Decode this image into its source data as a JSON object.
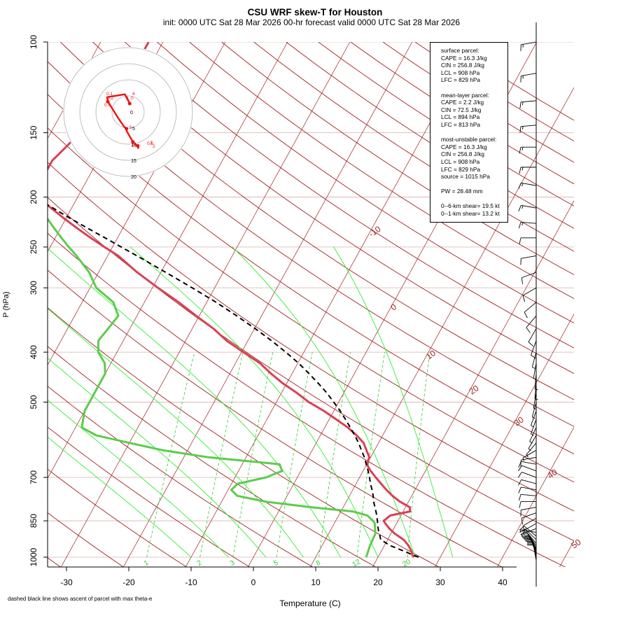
{
  "title": "CSU WRF skew-T for Houston",
  "subtitle": "init: 0000 UTC Sat 28 Mar 2026     00-hr forecast valid 0000 UTC Sat 28 Mar 2026",
  "footnote": "dashed black line shows ascent of parcel with max theta-e",
  "info": {
    "surface_header": "surface parcel:",
    "surface_cape": "CAPE = 16.3 J/kg",
    "surface_cin": "CIN = 256.8 J/kg",
    "surface_lcl": "LCL = 908 hPa",
    "surface_lfc": "LFC = 829 hPa",
    "ml_header": "mean-layer parcel:",
    "ml_cape": "CAPE = 2.2 J/kg",
    "ml_cin": "CIN = 72.5 J/kg",
    "ml_lcl": "LCL = 894 hPa",
    "ml_lfc": "LFC = 813 hPa",
    "mu_header": "most-unstable parcel:",
    "mu_cape": "CAPE = 16.3 J/kg",
    "mu_cin": "CIN = 256.8 J/kg",
    "mu_lcl": "LCL = 908 hPa",
    "mu_lfc": "LFC = 829 hPa",
    "mu_source": "source = 1015 hPa",
    "pw": "PW =  28.48 mm",
    "shear_06": "0--6-km shear= 19.5 kt",
    "shear_01": "0--1-km shear= 13.2 kt"
  },
  "colors": {
    "temperature": "#d94153",
    "dewpoint": "#5ccc4c",
    "parcel": "#000000",
    "isotherm": "#a02020",
    "dry_adiabat": "#a02020",
    "isobar": "#d8b0b0",
    "moist_adiabat": "#33ee33",
    "mixing_ratio": "#33cc33",
    "hodograph": "#ee1111"
  },
  "chart_data": {
    "type": "skew-T log-p diagram",
    "xlabel": "Temperature (C)",
    "ylabel": "P (hPa)",
    "xlim": [
      -33,
      45
    ],
    "ylim": [
      1000,
      100
    ],
    "x_ticks": [
      -30,
      -20,
      -10,
      0,
      10,
      20,
      30,
      40
    ],
    "y_ticks": [
      100,
      150,
      200,
      250,
      300,
      400,
      500,
      700,
      850,
      1000
    ],
    "y_scale": "log",
    "isotherm_labels": [
      "-10",
      "0",
      "10",
      "20",
      "30",
      "40",
      "50"
    ],
    "isotherm_label_values": [
      -10,
      0,
      10,
      20,
      30,
      40,
      50
    ],
    "mixing_ratio_labels": [
      "1",
      "2",
      "3",
      "5",
      "8",
      "12",
      "20"
    ],
    "mixing_ratio_values": [
      1,
      2,
      3,
      5,
      8,
      12,
      20
    ],
    "temperature_profile": {
      "pressure": [
        1000,
        990,
        975,
        950,
        925,
        900,
        880,
        860,
        850,
        830,
        815,
        800,
        780,
        760,
        740,
        720,
        700,
        680,
        660,
        640,
        620,
        600,
        580,
        560,
        540,
        520,
        500,
        480,
        460,
        440,
        420,
        400,
        380,
        360,
        340,
        320,
        300,
        280,
        260,
        250,
        240,
        230,
        220,
        210,
        200,
        190,
        180,
        170,
        160,
        150,
        140,
        130,
        120,
        110,
        100
      ],
      "temperature": [
        25.8,
        25.3,
        24.9,
        23.9,
        22.6,
        20.6,
        19.3,
        18.2,
        17.7,
        18.3,
        21.1,
        20.7,
        18.6,
        16.9,
        15.4,
        14.0,
        12.6,
        11.2,
        10.0,
        9.8,
        8.7,
        7.6,
        5.8,
        3.7,
        1.1,
        -1.6,
        -4.8,
        -7.5,
        -10.6,
        -13.4,
        -16.1,
        -19.7,
        -23.4,
        -26.6,
        -30.5,
        -34.5,
        -39.1,
        -43.8,
        -48.3,
        -51.3,
        -54.3,
        -57.3,
        -60.3,
        -63.3,
        -66.3,
        -67.3,
        -67.3,
        -67.3,
        -66.3,
        -65.3,
        -65.3,
        -63.3,
        -62.3,
        -62.3,
        -62.3
      ]
    },
    "dewpoint_profile": {
      "pressure": [
        1000,
        975,
        950,
        925,
        900,
        880,
        860,
        850,
        830,
        815,
        800,
        780,
        760,
        740,
        720,
        700,
        680,
        660,
        640,
        620,
        600,
        580,
        560,
        540,
        520,
        500,
        480,
        460,
        440,
        420,
        400,
        380,
        360,
        340,
        320,
        300,
        280,
        260,
        250,
        240,
        230,
        220,
        210,
        200,
        190,
        180,
        170
      ],
      "dewpoint": [
        18.1,
        17.9,
        17.7,
        17.6,
        17.5,
        17.0,
        16.5,
        16.0,
        14.6,
        11.9,
        5.0,
        -3.0,
        -8.0,
        -9.5,
        -9.0,
        -5.0,
        -3.0,
        -4.0,
        -16.0,
        -24.0,
        -30.0,
        -36.0,
        -39.0,
        -39.5,
        -40.0,
        -40.0,
        -40.0,
        -40.0,
        -40.0,
        -41.0,
        -43.0,
        -44.0,
        -43.5,
        -43.0,
        -45.0,
        -49.0,
        -51.5,
        -55.0,
        -57.0,
        -59.0,
        -61.0,
        -63.0,
        -65.0,
        -67.0,
        -69.0,
        -71.0,
        -73.0
      ]
    },
    "parcel_profile": {
      "pressure": [
        1000,
        975,
        950,
        925,
        908,
        890,
        870,
        850,
        820,
        800,
        780,
        760,
        740,
        720,
        700,
        680,
        660,
        640,
        620,
        600,
        580,
        560,
        540,
        520,
        500,
        480,
        460,
        440,
        420,
        400,
        380,
        360,
        340,
        320,
        300,
        280,
        260,
        250,
        240,
        230,
        220,
        210,
        200,
        190,
        180,
        170,
        160
      ],
      "temperature": [
        26.5,
        23.8,
        21.0,
        18.9,
        18.4,
        17.8,
        17.2,
        16.7,
        15.8,
        15.1,
        14.4,
        13.8,
        13.1,
        12.3,
        11.6,
        10.8,
        9.9,
        9.0,
        7.9,
        6.8,
        5.5,
        4.1,
        2.6,
        1.0,
        -0.8,
        -2.7,
        -4.9,
        -7.3,
        -9.9,
        -12.9,
        -16.2,
        -19.9,
        -24.0,
        -28.5,
        -33.6,
        -39.2,
        -45.3,
        -48.6,
        -52.0,
        -55.6,
        -59.3,
        -63.0,
        -67.0,
        -71.1,
        -75.3,
        -79.6,
        -84.0
      ]
    },
    "hodograph": {
      "rings_kt": [
        5,
        10,
        15,
        20
      ],
      "ring_labels": [
        "5",
        "10",
        "15",
        "20"
      ],
      "u_kt": [
        3.0,
        3.2,
        2.8,
        1.5,
        -0.5,
        -0.5,
        -1.2,
        -3.0,
        -6.0,
        -6.3,
        -6.5,
        -1.0,
        0.5,
        -0.5
      ],
      "v_kt": [
        -10.5,
        -11.2,
        -10.5,
        -9.3,
        -5.8,
        -5.2,
        -4.6,
        -2.0,
        2.8,
        3.2,
        4.6,
        5.5,
        2.6,
        4.8
      ],
      "point_labels": [
        "0.5",
        "2",
        "10",
        "3",
        "5",
        "4",
        "0",
        "0.2",
        "0.1",
        "0.5"
      ]
    },
    "wind_barbs": {
      "pressure": [
        1015,
        1010,
        1005,
        1000,
        995,
        990,
        985,
        980,
        975,
        970,
        965,
        960,
        950,
        940,
        925,
        910,
        895,
        880,
        860,
        840,
        820,
        800,
        780,
        760,
        740,
        720,
        700,
        680,
        660,
        640,
        620,
        600,
        580,
        560,
        540,
        520,
        500,
        480,
        460,
        440,
        420,
        400,
        380,
        360,
        340,
        320,
        300,
        280,
        260,
        240,
        225,
        210,
        190,
        175,
        160,
        145,
        130,
        115,
        100
      ],
      "direction_deg": [
        190,
        190,
        190,
        190,
        195,
        195,
        200,
        200,
        205,
        205,
        210,
        210,
        215,
        220,
        225,
        230,
        260,
        290,
        300,
        300,
        290,
        280,
        270,
        265,
        260,
        255,
        250,
        250,
        260,
        280,
        300,
        320,
        330,
        335,
        340,
        340,
        345,
        350,
        355,
        355,
        350,
        345,
        340,
        330,
        320,
        310,
        300,
        290,
        280,
        270,
        265,
        260,
        260,
        270,
        270,
        275,
        275,
        280,
        280
      ],
      "speed_kt": [
        10,
        11,
        12,
        12,
        12,
        12,
        12,
        12,
        12,
        12,
        12,
        12,
        12,
        11,
        10,
        8,
        6,
        6,
        7,
        8,
        9,
        10,
        10,
        10,
        11,
        12,
        12,
        11,
        10,
        8,
        7,
        6,
        5,
        5,
        5,
        6,
        6,
        6,
        5,
        5,
        6,
        7,
        8,
        9,
        10,
        10,
        11,
        12,
        12,
        12,
        13,
        15,
        15,
        15,
        15,
        15,
        15,
        15,
        15
      ]
    }
  }
}
